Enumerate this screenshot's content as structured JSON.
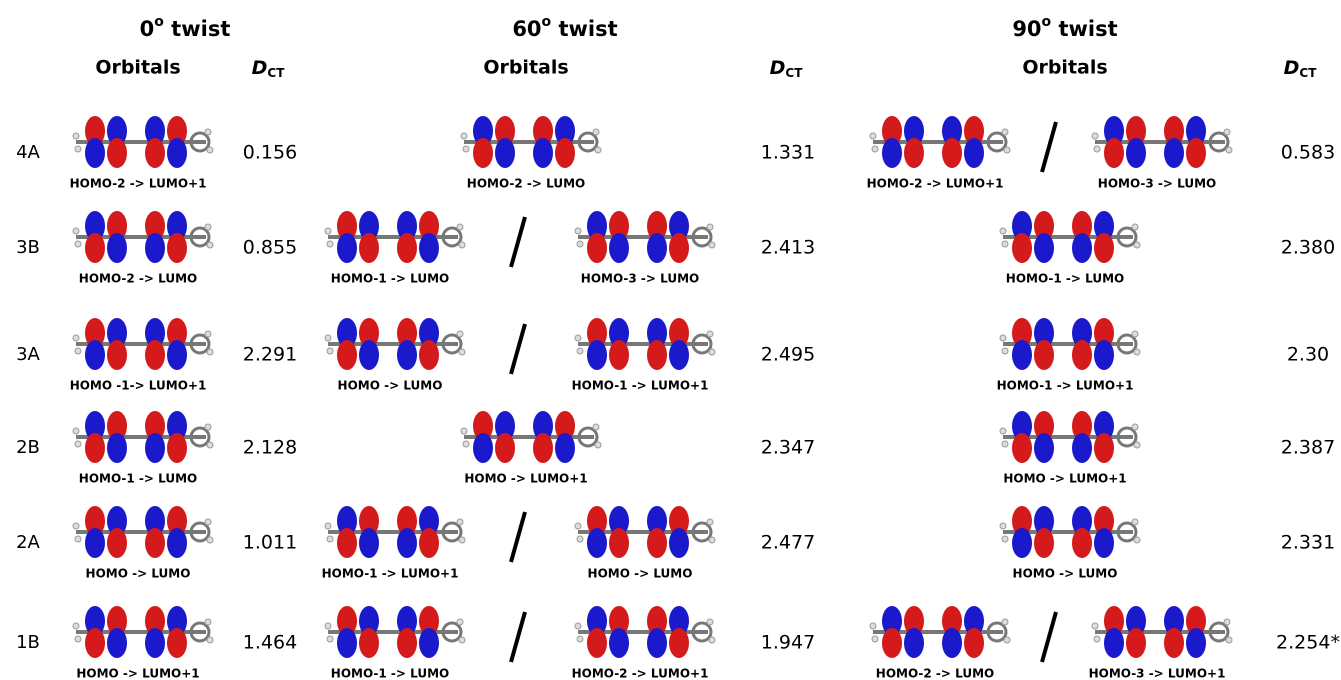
{
  "columns": [
    {
      "twist": {
        "number": "0",
        "degree": "o",
        "word": " twist"
      },
      "orbitals": "Orbitals",
      "dct": {
        "symbol": "D",
        "subscript": "CT"
      }
    },
    {
      "twist": {
        "number": "60",
        "degree": "o",
        "word": " twist"
      },
      "orbitals": "Orbitals",
      "dct": {
        "symbol": "D",
        "subscript": "CT"
      }
    },
    {
      "twist": {
        "number": "90",
        "degree": "o",
        "word": " twist"
      },
      "orbitals": "Orbitals",
      "dct": {
        "symbol": "D",
        "subscript": "CT"
      }
    }
  ],
  "rows": [
    {
      "label": "4A",
      "cells": [
        {
          "transitions": [
            "HOMO-2 -> LUMO+1"
          ],
          "dct": "0.156"
        },
        {
          "transitions": [
            "HOMO-2 -> LUMO"
          ],
          "dct": "1.331"
        },
        {
          "transitions": [
            "HOMO-2 -> LUMO+1",
            "HOMO-3 -> LUMO"
          ],
          "dct": "0.583"
        }
      ]
    },
    {
      "label": "3B",
      "cells": [
        {
          "transitions": [
            "HOMO-2 -> LUMO"
          ],
          "dct": "0.855"
        },
        {
          "transitions": [
            "HOMO-1 -> LUMO",
            "HOMO-3 -> LUMO"
          ],
          "dct": "2.413"
        },
        {
          "transitions": [
            "HOMO-1 -> LUMO"
          ],
          "dct": "2.380"
        }
      ]
    },
    {
      "label": "3A",
      "cells": [
        {
          "transitions": [
            "HOMO -1-> LUMO+1"
          ],
          "dct": "2.291"
        },
        {
          "transitions": [
            "HOMO -> LUMO",
            "HOMO-1 -> LUMO+1"
          ],
          "dct": "2.495"
        },
        {
          "transitions": [
            "HOMO-1 ->  LUMO+1"
          ],
          "dct": "2.30"
        }
      ]
    },
    {
      "label": "2B",
      "cells": [
        {
          "transitions": [
            "HOMO-1 -> LUMO"
          ],
          "dct": "2.128"
        },
        {
          "transitions": [
            "HOMO -> LUMO+1"
          ],
          "dct": "2.347"
        },
        {
          "transitions": [
            "HOMO -> LUMO+1"
          ],
          "dct": "2.387"
        }
      ]
    },
    {
      "label": "2A",
      "cells": [
        {
          "transitions": [
            "HOMO -> LUMO"
          ],
          "dct": "1.011"
        },
        {
          "transitions": [
            "HOMO-1 -> LUMO+1",
            "HOMO -> LUMO"
          ],
          "dct": "2.477"
        },
        {
          "transitions": [
            "HOMO -> LUMO"
          ],
          "dct": "2.331"
        }
      ]
    },
    {
      "label": "1B",
      "cells": [
        {
          "transitions": [
            "HOMO -> LUMO+1"
          ],
          "dct": "1.464"
        },
        {
          "transitions": [
            "HOMO-1 -> LUMO",
            "HOMO-2 -> LUMO+1"
          ],
          "dct": "1.947"
        },
        {
          "transitions": [
            "HOMO-2 -> LUMO",
            "HOMO-3 -> LUMO+1"
          ],
          "dct": "2.254*"
        }
      ]
    }
  ]
}
